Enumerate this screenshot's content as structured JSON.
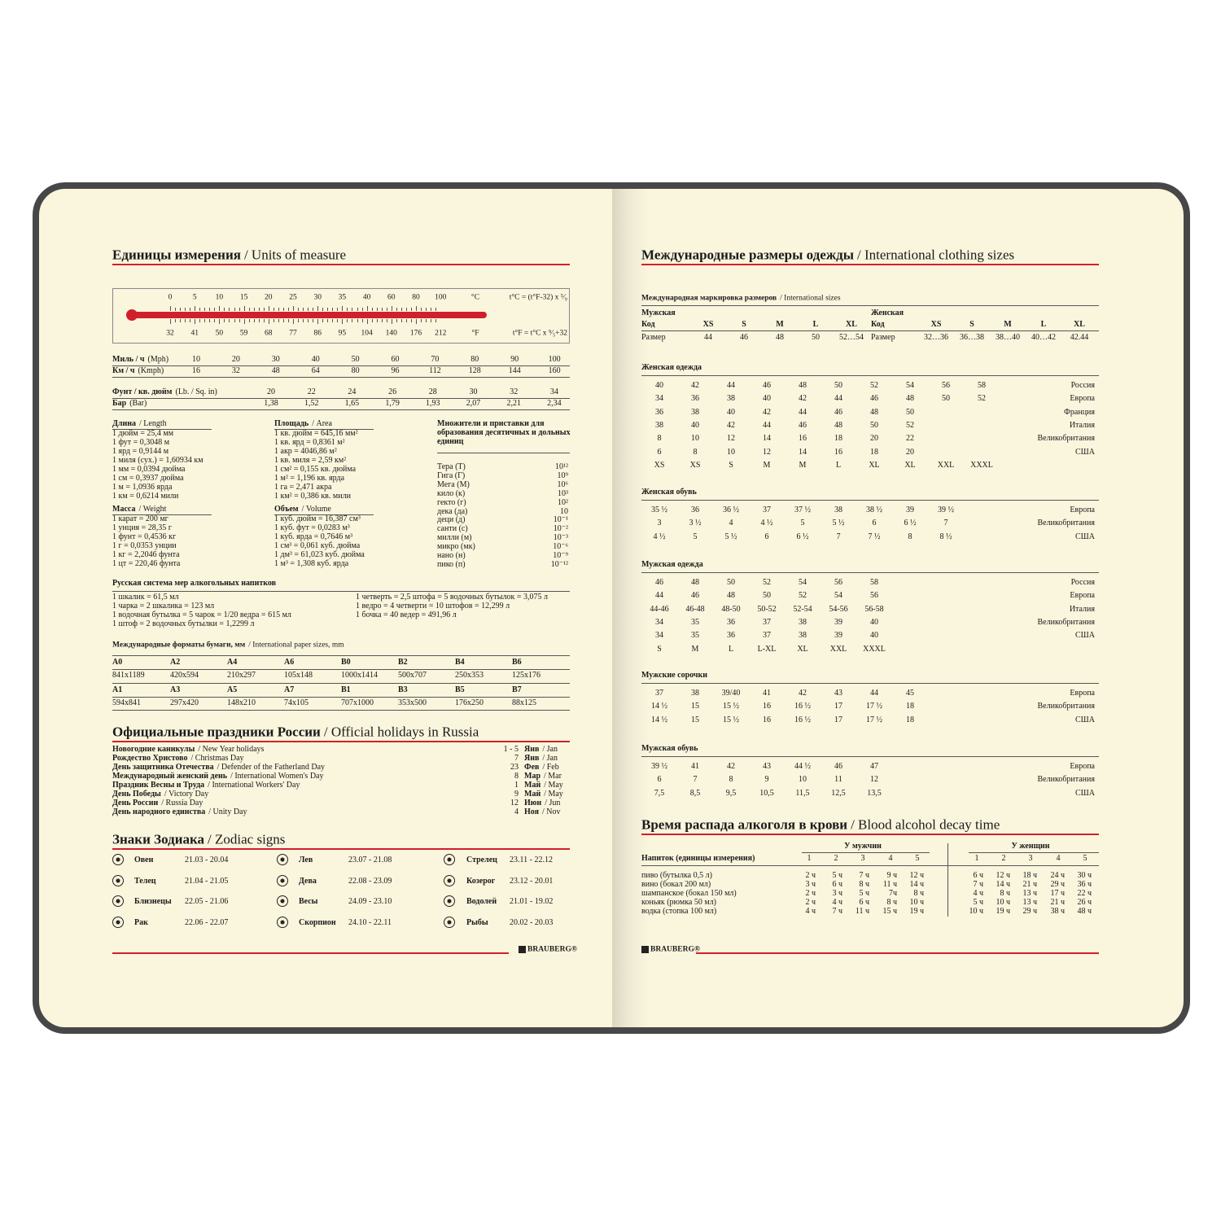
{
  "left": {
    "units": {
      "title": {
        "ru": "Единицы измерения",
        "en": "/ Units of measure"
      },
      "thermometer": {
        "celsius": [
          0,
          5,
          10,
          15,
          20,
          25,
          30,
          35,
          40,
          60,
          80,
          100
        ],
        "celsius_unit": "°C",
        "celsius_formula": "t°C = (t°F-32) x ⁵⁄₉",
        "fahrenheit": [
          32,
          41,
          50,
          59,
          68,
          77,
          86,
          95,
          104,
          140,
          176,
          212
        ],
        "fahrenheit_unit": "°F",
        "fahrenheit_formula": "t°F = t°C x ⁹⁄₅+32"
      },
      "speed": [
        {
          "name": "Миль / ч",
          "unit": "(Mph)",
          "values": [
            10,
            20,
            30,
            40,
            50,
            60,
            70,
            80,
            90,
            100
          ]
        },
        {
          "name": "Км / ч",
          "unit": "(Kmph)",
          "values": [
            16,
            32,
            48,
            64,
            80,
            96,
            112,
            128,
            144,
            160
          ]
        }
      ],
      "pressure": [
        {
          "name": "Фунт / кв. дюйм",
          "unit": "(Lb. / Sq. in)",
          "values": [
            "20",
            "22",
            "24",
            "26",
            "28",
            "30",
            "32",
            "34"
          ]
        },
        {
          "name": "Бар",
          "unit": "(Bar)",
          "values": [
            "1,38",
            "1,52",
            "1,65",
            "1,79",
            "1,93",
            "2,07",
            "2,21",
            "2,34"
          ]
        }
      ],
      "length": {
        "title": "Длина",
        "en": "/ Length",
        "items": [
          "1 дюйм = 25,4 мм",
          "1 фут = 0,3048 м",
          "1 ярд = 0,9144 м",
          "1 миля (сух.) = 1,60934 км",
          "1 мм = 0,0394 дюйма",
          "1 см = 0,3937 дюйма",
          "1 м = 1,0936 ярда",
          "1 км = 0,6214 мили"
        ]
      },
      "area": {
        "title": "Площадь",
        "en": "/ Area",
        "items": [
          "1 кв. дюйм = 645,16 мм²",
          "1 кв. ярд = 0,8361 м²",
          "1 акр = 4046,86 м²",
          "1 кв. миля = 2,59 км²",
          "1 см² = 0,155 кв. дюйма",
          "1 м² = 1,196 кв. ярда",
          "1 га = 2,471 акра",
          "1 км² = 0,386 кв. мили"
        ]
      },
      "multipliers": {
        "title": "Множители и приставки для образования десятичных и дольных единиц",
        "items": [
          [
            "Тера (Т)",
            "10¹²"
          ],
          [
            "Гига (Г)",
            "10⁹"
          ],
          [
            "Мега (М)",
            "10⁶"
          ],
          [
            "кило (к)",
            "10³"
          ],
          [
            "гекто (г)",
            "10²"
          ],
          [
            "дека (да)",
            "10"
          ],
          [
            "деци (д)",
            "10⁻¹"
          ],
          [
            "санти (с)",
            "10⁻²"
          ],
          [
            "милли (м)",
            "10⁻³"
          ],
          [
            "микро (мк)",
            "10⁻⁶"
          ],
          [
            "нано (н)",
            "10⁻⁹"
          ],
          [
            "пико (п)",
            "10⁻¹²"
          ]
        ]
      },
      "mass": {
        "title": "Масса",
        "en": "/ Weight",
        "items": [
          "1 карат = 200 мг",
          "1 унция = 28,35 г",
          "1 фунт = 0,4536 кг",
          "1 г = 0,0353 унции",
          "1 кг = 2,2046 фунта",
          "1 цт = 220,46 фунта"
        ]
      },
      "volume": {
        "title": "Объем",
        "en": "/ Volume",
        "items": [
          "1 куб. дюйм = 16,387 см³",
          "1 куб. фут = 0,0283 м³",
          "1 куб. ярда = 0,7646 м³",
          "1 см³ = 0,061 куб. дюйма",
          "1 дм³ = 61,023 куб. дюйма",
          "1 м³ = 1,308 куб. ярда"
        ]
      },
      "alcohol": {
        "title": "Русская система мер алкогольных напитков",
        "left": [
          "1 шкалик = 61,5 мл",
          "1 чарка = 2 шкалика = 123 мл",
          "1 водочная бутылка = 5 чарок = 1/20 ведра = 615 мл",
          "1 штоф = 2 водочных бутылки = 1,2299 л"
        ],
        "right": [
          "1 четверть = 2,5 штофа = 5 водочных бутылок = 3,075 л",
          "1 ведро = 4 четверти = 10 штофов = 12,299 л",
          "1 бочка = 40 ведер = 491,96 л"
        ]
      },
      "paper": {
        "title": "Международные форматы бумаги, мм",
        "en": "/ International paper sizes, mm",
        "rows": [
          {
            "formats": [
              "A0",
              "A2",
              "A4",
              "A6",
              "B0",
              "B2",
              "B4",
              "B6"
            ],
            "sizes": [
              "841x1189",
              "420x594",
              "210x297",
              "105x148",
              "1000x1414",
              "500x707",
              "250x353",
              "125x176"
            ]
          },
          {
            "formats": [
              "A1",
              "A3",
              "A5",
              "A7",
              "B1",
              "B3",
              "B5",
              "B7"
            ],
            "sizes": [
              "594x841",
              "297x420",
              "148x210",
              "74x105",
              "707x1000",
              "353x500",
              "176x250",
              "88x125"
            ]
          }
        ]
      }
    },
    "holidays": {
      "title": {
        "ru": "Официальные праздники России",
        "en": "/ Official holidays in Russia"
      },
      "items": [
        {
          "name": "Новогодние каникулы",
          "en": "/ New Year holidays",
          "day": "1 - 5",
          "month": "Янв",
          "month_en": "/ Jan"
        },
        {
          "name": "Рождество Христово",
          "en": "/ Christmas Day",
          "day": "7",
          "month": "Янв",
          "month_en": "/ Jan"
        },
        {
          "name": "День защитника Отечества",
          "en": "/ Defender of the Fatherland Day",
          "day": "23",
          "month": "Фев",
          "month_en": "/ Feb"
        },
        {
          "name": "Международный женский день",
          "en": "/ International Women's Day",
          "day": "8",
          "month": "Мар",
          "month_en": "/ Mar"
        },
        {
          "name": "Праздник Весны и Труда",
          "en": "/ International Workers' Day",
          "day": "1",
          "month": "Май",
          "month_en": "/ May"
        },
        {
          "name": "День Победы",
          "en": "/ Victory Day",
          "day": "9",
          "month": "Май",
          "month_en": "/ May"
        },
        {
          "name": "День России",
          "en": "/ Russia Day",
          "day": "12",
          "month": "Июн",
          "month_en": "/ Jun"
        },
        {
          "name": "День народного единства",
          "en": "/ Unity Day",
          "day": "4",
          "month": "Ноя",
          "month_en": "/ Nov"
        }
      ]
    },
    "zodiac": {
      "title": {
        "ru": "Знаки Зодиака",
        "en": "/ Zodiac signs"
      },
      "columns": [
        [
          [
            "Овен",
            "21.03 - 20.04"
          ],
          [
            "Телец",
            "21.04 - 21.05"
          ],
          [
            "Близнецы",
            "22.05 - 21.06"
          ],
          [
            "Рак",
            "22.06 - 22.07"
          ]
        ],
        [
          [
            "Лев",
            "23.07 - 21.08"
          ],
          [
            "Дева",
            "22.08 - 23.09"
          ],
          [
            "Весы",
            "24.09 - 23.10"
          ],
          [
            "Скорпион",
            "24.10 - 22.11"
          ]
        ],
        [
          [
            "Стрелец",
            "23.11 - 22.12"
          ],
          [
            "Козерог",
            "23.12 - 20.01"
          ],
          [
            "Водолей",
            "21.01 - 19.02"
          ],
          [
            "Рыбы",
            "20.02 - 20.03"
          ]
        ]
      ]
    },
    "logo": "BRAUBERG®"
  },
  "right": {
    "clothing": {
      "title": {
        "ru": "Международные размеры одежды",
        "en": "/ International clothing sizes"
      },
      "intl": {
        "title": "Международная маркировка размеров",
        "en": "/ International sizes",
        "men": {
          "label": "Мужская",
          "code_label": "Код",
          "codes": [
            "XS",
            "S",
            "M",
            "L",
            "XL"
          ],
          "size_label": "Размер",
          "sizes": [
            "44",
            "46",
            "48",
            "50",
            "52…54"
          ]
        },
        "women": {
          "label": "Женская",
          "code_label": "Код",
          "codes": [
            "XS",
            "S",
            "M",
            "L",
            "XL"
          ],
          "size_label": "Размер",
          "sizes": [
            "32…36",
            "36…38",
            "38…40",
            "40…42",
            "42.44"
          ]
        }
      },
      "tables": [
        {
          "title": "Женская одежда",
          "rows": [
            {
              "cells": [
                "40",
                "42",
                "44",
                "46",
                "48",
                "50",
                "52",
                "54",
                "56",
                "58"
              ],
              "country": "Россия"
            },
            {
              "cells": [
                "34",
                "36",
                "38",
                "40",
                "42",
                "44",
                "46",
                "48",
                "50",
                "52"
              ],
              "country": "Европа"
            },
            {
              "cells": [
                "36",
                "38",
                "40",
                "42",
                "44",
                "46",
                "48",
                "50"
              ],
              "country": "Франция"
            },
            {
              "cells": [
                "38",
                "40",
                "42",
                "44",
                "46",
                "48",
                "50",
                "52"
              ],
              "country": "Италия"
            },
            {
              "cells": [
                "8",
                "10",
                "12",
                "14",
                "16",
                "18",
                "20",
                "22"
              ],
              "country": "Великобритания"
            },
            {
              "cells": [
                "6",
                "8",
                "10",
                "12",
                "14",
                "16",
                "18",
                "20"
              ],
              "country": "США"
            },
            {
              "cells": [
                "XS",
                "XS",
                "S",
                "M",
                "M",
                "L",
                "XL",
                "XL",
                "XXL",
                "XXXL"
              ]
            }
          ]
        },
        {
          "title": "Женская обувь",
          "rows": [
            {
              "cells": [
                "35 ½",
                "36",
                "36 ½",
                "37",
                "37 ½",
                "38",
                "38 ½",
                "39",
                "39 ½"
              ],
              "country": "Европа"
            },
            {
              "cells": [
                "3",
                "3 ½",
                "4",
                "4 ½",
                "5",
                "5 ½",
                "6",
                "6 ½",
                "7"
              ],
              "country": "Великобритания"
            },
            {
              "cells": [
                "4 ½",
                "5",
                "5 ½",
                "6",
                "6 ½",
                "7",
                "7 ½",
                "8",
                "8 ½"
              ],
              "country": "США"
            }
          ]
        },
        {
          "title": "Мужская одежда",
          "rows": [
            {
              "cells": [
                "46",
                "48",
                "50",
                "52",
                "54",
                "56",
                "58"
              ],
              "country": "Россия"
            },
            {
              "cells": [
                "44",
                "46",
                "48",
                "50",
                "52",
                "54",
                "56"
              ],
              "country": "Европа"
            },
            {
              "cells": [
                "44-46",
                "46-48",
                "48-50",
                "50-52",
                "52-54",
                "54-56",
                "56-58"
              ],
              "country": "Италия"
            },
            {
              "cells": [
                "34",
                "35",
                "36",
                "37",
                "38",
                "39",
                "40"
              ],
              "country": "Великобритания"
            },
            {
              "cells": [
                "34",
                "35",
                "36",
                "37",
                "38",
                "39",
                "40"
              ],
              "country": "США"
            },
            {
              "cells": [
                "S",
                "M",
                "L",
                "L-XL",
                "XL",
                "XXL",
                "XXXL"
              ]
            }
          ]
        },
        {
          "title": "Мужские сорочки",
          "rows": [
            {
              "cells": [
                "37",
                "38",
                "39/40",
                "41",
                "42",
                "43",
                "44",
                "45"
              ],
              "country": "Европа"
            },
            {
              "cells": [
                "14 ½",
                "15",
                "15 ½",
                "16",
                "16 ½",
                "17",
                "17 ½",
                "18"
              ],
              "country": "Великобритания"
            },
            {
              "cells": [
                "14 ½",
                "15",
                "15 ½",
                "16",
                "16 ½",
                "17",
                "17 ½",
                "18"
              ],
              "country": "США"
            }
          ]
        },
        {
          "title": "Мужская обувь",
          "rows": [
            {
              "cells": [
                "39 ½",
                "41",
                "42",
                "43",
                "44 ½",
                "46",
                "47"
              ],
              "country": "Европа"
            },
            {
              "cells": [
                "6",
                "7",
                "8",
                "9",
                "10",
                "11",
                "12"
              ],
              "country": "Великобритания"
            },
            {
              "cells": [
                "7,5",
                "8,5",
                "9,5",
                "10,5",
                "11,5",
                "12,5",
                "13,5"
              ],
              "country": "США"
            }
          ]
        }
      ]
    },
    "alcohol": {
      "title": {
        "ru": "Время распада алкоголя в крови",
        "en": "/ Blood alcohol decay time"
      },
      "men_label": "У мужчин",
      "women_label": "У женщин",
      "drink_label": "Напиток (единицы измерения)",
      "men_units": [
        1,
        2,
        3,
        4,
        5
      ],
      "women_units": [
        1,
        2,
        3,
        4,
        5
      ],
      "rows": [
        {
          "drink": "пиво (бутылка 0,5 л)",
          "men": [
            "2 ч",
            "5 ч",
            "7 ч",
            "9 ч",
            "12 ч"
          ],
          "women": [
            "6 ч",
            "12 ч",
            "18 ч",
            "24 ч",
            "30 ч"
          ]
        },
        {
          "drink": "вино (бокал 200 мл)",
          "men": [
            "3 ч",
            "6 ч",
            "8 ч",
            "11 ч",
            "14 ч"
          ],
          "women": [
            "7 ч",
            "14 ч",
            "21 ч",
            "29 ч",
            "36 ч"
          ]
        },
        {
          "drink": "шампанское (бокал 150 мл)",
          "men": [
            "2 ч",
            "3 ч",
            "5 ч",
            "7ч",
            "8 ч"
          ],
          "women": [
            "4 ч",
            "8 ч",
            "13 ч",
            "17 ч",
            "22 ч"
          ]
        },
        {
          "drink": "коньяк (рюмка 50 мл)",
          "men": [
            "2 ч",
            "4 ч",
            "6 ч",
            "8 ч",
            "10 ч"
          ],
          "women": [
            "5 ч",
            "10 ч",
            "13 ч",
            "21 ч",
            "26 ч"
          ]
        },
        {
          "drink": "водка (стопка 100 мл)",
          "men": [
            "4 ч",
            "7 ч",
            "11 ч",
            "15 ч",
            "19 ч"
          ],
          "women": [
            "10 ч",
            "19 ч",
            "29 ч",
            "38 ч",
            "48 ч"
          ]
        }
      ]
    },
    "logo": "BRAUBERG®"
  }
}
